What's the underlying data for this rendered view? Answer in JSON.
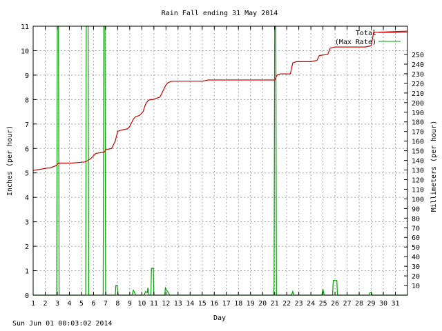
{
  "footer_timestamp": "Sun Jun 01 00:03:02 2014",
  "chart_data": {
    "type": "line",
    "title": "Rain Fall ending 31 May 2014",
    "xlabel": "Day",
    "ylabel_left": "Inches (per hour)",
    "ylabel_right": "Millimeters (per hour)",
    "xlim": [
      1,
      32
    ],
    "ylim_left": [
      0,
      11
    ],
    "ylim_right_mm": [
      0,
      279.4
    ],
    "x_ticks": [
      "1",
      "2",
      "3",
      "4",
      "5",
      "6",
      "7",
      "8",
      "9",
      "10",
      "11",
      "12",
      "13",
      "14",
      "15",
      "16",
      "17",
      "18",
      "19",
      "20",
      "21",
      "22",
      "23",
      "24",
      "25",
      "26",
      "27",
      "28",
      "29",
      "30",
      "31"
    ],
    "y_ticks_left": [
      "0",
      "1",
      "2",
      "3",
      "4",
      "5",
      "6",
      "7",
      "8",
      "9",
      "10",
      "11"
    ],
    "y_ticks_right": [
      "10",
      "20",
      "30",
      "40",
      "50",
      "60",
      "70",
      "80",
      "90",
      "100",
      "110",
      "120",
      "130",
      "140",
      "150",
      "160",
      "170",
      "180",
      "190",
      "200",
      "210",
      "220",
      "230",
      "240",
      "250"
    ],
    "grid": true,
    "legend_position": "top-right",
    "series": [
      {
        "name": "Total",
        "color": "#cc0000",
        "x": [
          1.0,
          2.2,
          2.4,
          2.9,
          3.1,
          4.2,
          5.3,
          5.5,
          5.8,
          6.2,
          6.9,
          7.0,
          7.5,
          7.8,
          8.0,
          8.3,
          8.8,
          9.0,
          9.3,
          9.5,
          9.8,
          10.1,
          10.3,
          10.5,
          10.7,
          10.9,
          11.2,
          11.5,
          11.8,
          12.0,
          12.2,
          12.5,
          13.0,
          15.0,
          15.5,
          16.0,
          21.0,
          21.2,
          21.5,
          22.3,
          22.5,
          22.8,
          24.0,
          24.5,
          24.7,
          25.4,
          25.6,
          26.0,
          28.5,
          29.0,
          29.2,
          32.0
        ],
        "y": [
          5.1,
          5.2,
          5.2,
          5.3,
          5.4,
          5.4,
          5.45,
          5.5,
          5.6,
          5.8,
          5.85,
          5.95,
          6.0,
          6.3,
          6.7,
          6.75,
          6.8,
          6.9,
          7.2,
          7.3,
          7.35,
          7.5,
          7.8,
          7.95,
          8.0,
          8.0,
          8.05,
          8.1,
          8.4,
          8.6,
          8.7,
          8.75,
          8.75,
          8.75,
          8.8,
          8.8,
          8.8,
          9.0,
          9.05,
          9.05,
          9.5,
          9.55,
          9.55,
          9.6,
          9.8,
          9.85,
          10.1,
          10.15,
          10.15,
          10.2,
          10.75,
          10.8
        ]
      },
      {
        "name": "(Max Rate)",
        "color": "#00a000",
        "x": [
          1.0,
          2.95,
          3.0,
          3.1,
          3.15,
          5.35,
          5.4,
          5.55,
          5.6,
          6.8,
          6.85,
          6.95,
          7.0,
          7.05,
          7.15,
          7.8,
          7.85,
          7.95,
          8.0,
          8.05,
          9.2,
          9.3,
          9.4,
          9.5,
          10.2,
          10.3,
          10.45,
          10.5,
          10.6,
          10.75,
          10.8,
          10.95,
          11.0,
          11.1,
          11.9,
          11.95,
          12.05,
          12.2,
          12.3,
          20.9,
          20.95,
          21.0,
          21.1,
          21.15,
          22.4,
          22.5,
          22.6,
          24.9,
          25.0,
          25.1,
          25.8,
          25.85,
          26.15,
          26.2,
          28.8,
          28.9,
          29.0,
          29.1,
          32.0
        ],
        "y": [
          0,
          0,
          11,
          11,
          0,
          0,
          11,
          11,
          0,
          0,
          11,
          11,
          0.2,
          0,
          0,
          0,
          0.4,
          0.4,
          0.2,
          0,
          0,
          0.2,
          0.1,
          0,
          0,
          0.15,
          0.1,
          0.3,
          0,
          0,
          1.1,
          1.1,
          0,
          0,
          0,
          0.3,
          0.2,
          0.1,
          0,
          0,
          0.3,
          11,
          11,
          0,
          0,
          0.15,
          0,
          0,
          0.25,
          0,
          0,
          0.6,
          0.6,
          0,
          0,
          0.1,
          0.1,
          0,
          0
        ]
      }
    ]
  }
}
